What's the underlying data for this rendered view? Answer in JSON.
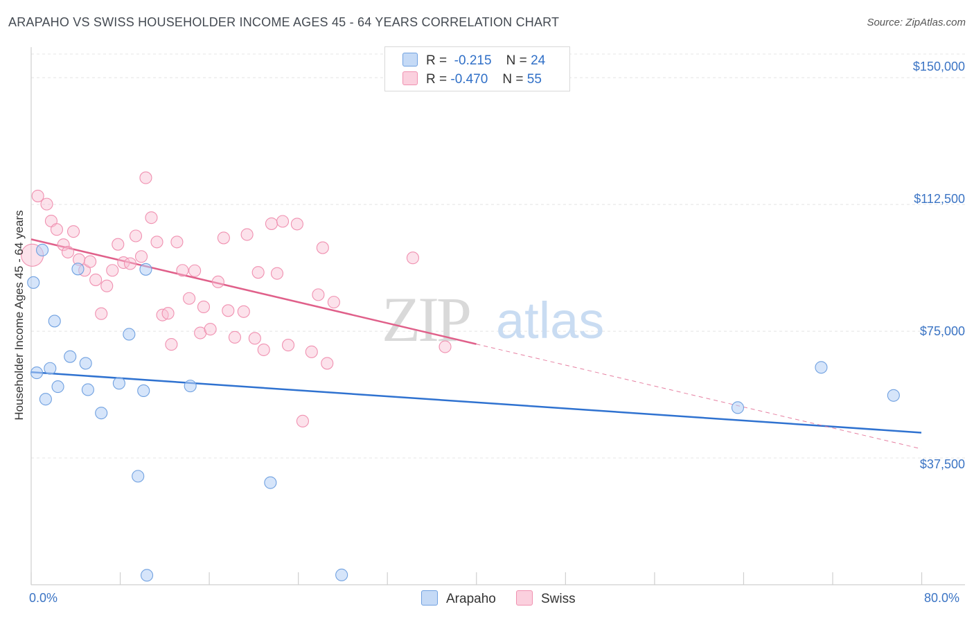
{
  "title": "ARAPAHO VS SWISS HOUSEHOLDER INCOME AGES 45 - 64 YEARS CORRELATION CHART",
  "source": "Source: ZipAtlas.com",
  "watermark": {
    "zip": "ZIP",
    "atlas": "atlas"
  },
  "legend": {
    "arapaho": {
      "r_label": "R =",
      "r_value": "-0.215",
      "n_label": "N =",
      "n_value": "24"
    },
    "swiss": {
      "r_label": "R =",
      "r_value": "-0.470",
      "n_label": "N =",
      "n_value": "55"
    }
  },
  "bottom_legend": {
    "arapaho": "Arapaho",
    "swiss": "Swiss"
  },
  "chart_data": {
    "type": "scatter",
    "title": "ARAPAHO VS SWISS HOUSEHOLDER INCOME AGES 45 - 64 YEARS CORRELATION CHART",
    "xlabel": "",
    "ylabel": "Householder Income Ages 45 - 64 years",
    "xlim": [
      0,
      80
    ],
    "ylim": [
      0,
      157000
    ],
    "x_tick_labels": [
      "0.0%",
      "80.0%"
    ],
    "y_tick_labels": [
      "$150,000",
      "$112,500",
      "$75,000",
      "$37,500"
    ],
    "y_tick_values": [
      150000,
      112500,
      75000,
      37500
    ],
    "colors": {
      "arapaho": "#6fa0e0",
      "arapaho_line": "#2f72d0",
      "swiss": "#f090b0",
      "swiss_line": "#e0608a"
    },
    "series": [
      {
        "name": "Arapaho",
        "points": [
          [
            0.2,
            89400
          ],
          [
            0.5,
            62700
          ],
          [
            1.3,
            54900
          ],
          [
            1.7,
            64000
          ],
          [
            1.0,
            99000
          ],
          [
            2.1,
            78000
          ],
          [
            2.4,
            58600
          ],
          [
            3.5,
            67500
          ],
          [
            4.2,
            93400
          ],
          [
            4.9,
            65500
          ],
          [
            5.1,
            57700
          ],
          [
            6.3,
            50800
          ],
          [
            7.9,
            59600
          ],
          [
            8.8,
            74100
          ],
          [
            9.6,
            32100
          ],
          [
            10.1,
            57400
          ],
          [
            10.3,
            93300
          ],
          [
            10.4,
            2800
          ],
          [
            14.3,
            58800
          ],
          [
            21.5,
            30200
          ],
          [
            27.9,
            2900
          ],
          [
            63.5,
            52400
          ],
          [
            71.0,
            64300
          ],
          [
            77.5,
            56000
          ]
        ],
        "trend": {
          "x": [
            0,
            80
          ],
          "y": [
            62900,
            45000
          ]
        }
      },
      {
        "name": "Swiss",
        "points": [
          [
            0.1,
            97500
          ],
          [
            0.6,
            115000
          ],
          [
            1.4,
            112600
          ],
          [
            1.8,
            107600
          ],
          [
            2.3,
            105100
          ],
          [
            2.9,
            100600
          ],
          [
            3.3,
            98400
          ],
          [
            3.8,
            104500
          ],
          [
            4.3,
            96200
          ],
          [
            4.8,
            93000
          ],
          [
            5.3,
            95600
          ],
          [
            5.8,
            90200
          ],
          [
            6.3,
            80200
          ],
          [
            6.8,
            88400
          ],
          [
            7.3,
            93000
          ],
          [
            7.8,
            100700
          ],
          [
            8.3,
            95300
          ],
          [
            8.9,
            95000
          ],
          [
            9.4,
            103200
          ],
          [
            9.9,
            97100
          ],
          [
            10.3,
            120400
          ],
          [
            10.8,
            108600
          ],
          [
            11.3,
            101400
          ],
          [
            11.8,
            79800
          ],
          [
            12.3,
            80300
          ],
          [
            12.6,
            71100
          ],
          [
            13.1,
            101400
          ],
          [
            13.6,
            93000
          ],
          [
            14.2,
            84700
          ],
          [
            14.7,
            92900
          ],
          [
            15.2,
            74500
          ],
          [
            15.5,
            82200
          ],
          [
            16.1,
            75600
          ],
          [
            16.8,
            89600
          ],
          [
            17.3,
            102600
          ],
          [
            17.7,
            81100
          ],
          [
            18.3,
            73200
          ],
          [
            19.1,
            80800
          ],
          [
            19.4,
            103600
          ],
          [
            20.1,
            72900
          ],
          [
            20.4,
            92400
          ],
          [
            20.9,
            69500
          ],
          [
            21.6,
            106800
          ],
          [
            22.1,
            92100
          ],
          [
            22.6,
            107500
          ],
          [
            23.1,
            70900
          ],
          [
            23.9,
            106700
          ],
          [
            24.4,
            48400
          ],
          [
            25.2,
            68900
          ],
          [
            25.8,
            85800
          ],
          [
            26.2,
            99700
          ],
          [
            26.6,
            65500
          ],
          [
            27.2,
            83600
          ],
          [
            34.3,
            96700
          ],
          [
            37.2,
            70400
          ]
        ],
        "trend": {
          "x": [
            0,
            40
          ],
          "y": [
            102200,
            71200
          ]
        },
        "trend_dashed": {
          "x": [
            40,
            80
          ],
          "y": [
            71200,
            40200
          ]
        }
      }
    ]
  }
}
